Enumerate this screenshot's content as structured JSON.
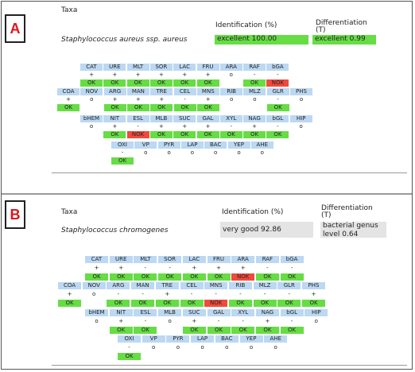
{
  "panel_a": {
    "label": "A",
    "taxa_header": "Taxa",
    "taxa_name": "Staphylococcus aureus ssp. aureus",
    "identification_header": "Identification (%)",
    "identification_value": "excellent 100.00",
    "differentiation_header_line1": "Differentiation",
    "differentiation_header_line2": "(T)",
    "differentiation_value": "excellent 0.99",
    "rows": [
      [
        [
          "CAT",
          "+",
          "OK"
        ],
        [
          "URE",
          "+",
          "OK"
        ],
        [
          "MLT",
          "+",
          "OK"
        ],
        [
          "SOR",
          "+",
          "OK"
        ],
        [
          "LAC",
          "+",
          "OK"
        ],
        [
          "FRU",
          "+",
          "OK"
        ],
        [
          "ARA",
          "o",
          ""
        ],
        [
          "RAF",
          "-",
          "OK"
        ],
        [
          "bGA",
          "-",
          "NOK"
        ]
      ],
      [
        [
          "COA",
          "+",
          "OK"
        ],
        [
          "NOV",
          "o",
          ""
        ],
        [
          "ARG",
          "+",
          "OK"
        ],
        [
          "MAN",
          "+",
          "OK"
        ],
        [
          "TRE",
          "+",
          "OK"
        ],
        [
          "CEL",
          "-",
          "OK"
        ],
        [
          "MNS",
          "+",
          "OK"
        ],
        [
          "RIB",
          "o",
          ""
        ],
        [
          "MLZ",
          "o",
          ""
        ],
        [
          "GLR",
          "-",
          "OK"
        ],
        [
          "PHS",
          "o",
          ""
        ]
      ],
      [
        [
          "bHEM",
          "o",
          ""
        ],
        [
          "NIT",
          "+",
          "OK"
        ],
        [
          "ESL",
          "-",
          "NOK"
        ],
        [
          "MLB",
          "+",
          "OK"
        ],
        [
          "SUC",
          "+",
          "OK"
        ],
        [
          "GAL",
          "+",
          "OK"
        ],
        [
          "XYL",
          "-",
          "OK"
        ],
        [
          "NAG",
          "+",
          "OK"
        ],
        [
          "bGL",
          "-",
          "OK"
        ],
        [
          "HIP",
          "o",
          ""
        ]
      ],
      [
        [
          "OXI",
          "-",
          "OK"
        ],
        [
          "VP",
          "o",
          ""
        ],
        [
          "PYR",
          "o",
          ""
        ],
        [
          "LAP",
          "o",
          ""
        ],
        [
          "BAC",
          "o",
          ""
        ],
        [
          "YEP",
          "o",
          ""
        ],
        [
          "AHE",
          "o",
          ""
        ]
      ]
    ]
  },
  "panel_b": {
    "label": "B",
    "taxa_header": "Taxa",
    "taxa_name": "Staphylococcus chromogenes",
    "identification_header": "Identification (%)",
    "identification_value": "very good 92.86",
    "differentiation_header_line1": "Differentiation",
    "differentiation_header_line2": "(T)",
    "differentiation_value_line1": "bacterial genus",
    "differentiation_value_line2": "level 0.64",
    "rows": [
      [
        [
          "CAT",
          "+",
          "OK"
        ],
        [
          "URE",
          "+",
          "OK"
        ],
        [
          "MLT",
          "-",
          "OK"
        ],
        [
          "SOR",
          "-",
          "OK"
        ],
        [
          "LAC",
          "+",
          "OK"
        ],
        [
          "FRU",
          "+",
          "OK"
        ],
        [
          "ARA",
          "+",
          "NOK"
        ],
        [
          "RAF",
          "-",
          "OK"
        ],
        [
          "bGA",
          "-",
          "OK"
        ]
      ],
      [
        [
          "COA",
          "+",
          "OK"
        ],
        [
          "NOV",
          "o",
          ""
        ],
        [
          "ARG",
          "-",
          "OK"
        ],
        [
          "MAN",
          "-",
          "OK"
        ],
        [
          "TRE",
          "+",
          "OK"
        ],
        [
          "CEL",
          "-",
          "OK"
        ],
        [
          "MNS",
          "-",
          "NOK"
        ],
        [
          "RIB",
          "-",
          "OK"
        ],
        [
          "MLZ",
          "-",
          "OK"
        ],
        [
          "GLR",
          "-",
          "OK"
        ],
        [
          "PHS",
          "+",
          "OK"
        ]
      ],
      [
        [
          "bHEM",
          "o",
          ""
        ],
        [
          "NIT",
          "+",
          "OK"
        ],
        [
          "ESL",
          "-",
          "OK"
        ],
        [
          "MLB",
          "o",
          ""
        ],
        [
          "SUC",
          "+",
          "OK"
        ],
        [
          "GAL",
          "-",
          "OK"
        ],
        [
          "XYL",
          "-",
          "OK"
        ],
        [
          "NAG",
          "+",
          "OK"
        ],
        [
          "bGL",
          "-",
          "OK"
        ],
        [
          "HIP",
          "o",
          ""
        ]
      ],
      [
        [
          "OXI",
          "-",
          "OK"
        ],
        [
          "VP",
          "o",
          ""
        ],
        [
          "PYR",
          "o",
          ""
        ],
        [
          "LAP",
          "o",
          ""
        ],
        [
          "BAC",
          "o",
          ""
        ],
        [
          "YEP",
          "o",
          ""
        ],
        [
          "AHE",
          "o",
          ""
        ]
      ]
    ]
  }
}
